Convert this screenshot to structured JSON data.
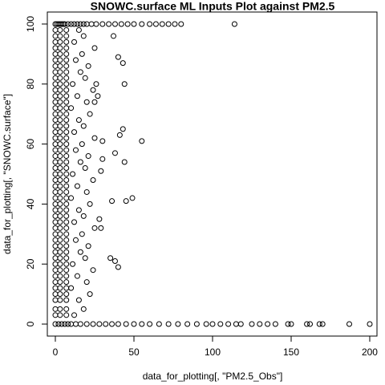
{
  "chart_data": {
    "type": "scatter",
    "title": "SNOWC.surface ML Inputs Plot against PM2.5",
    "xlabel": "data_for_plotting[, \"PM2.5_Obs\"]",
    "ylabel": "data_for_plotting[, \"SNOWC.surface\"]",
    "color": "#000000",
    "xlim": [
      -5.1,
      204.6
    ],
    "ylim": [
      -4,
      104
    ],
    "xticks": [
      0,
      50,
      100,
      150,
      200
    ],
    "yticks": [
      0,
      20,
      40,
      60,
      80,
      100
    ],
    "x": [
      0,
      1,
      2,
      3,
      4,
      5,
      6,
      8,
      10,
      12,
      14,
      16,
      18,
      20,
      23,
      26,
      30,
      34,
      38,
      42,
      46,
      50,
      55,
      60,
      64,
      68,
      72,
      76,
      80,
      114,
      0,
      2,
      4,
      6,
      8,
      10,
      13,
      16,
      20,
      24,
      28,
      32,
      36,
      40,
      45,
      50,
      55,
      60,
      66,
      72,
      78,
      84,
      90,
      96,
      100,
      105,
      110,
      115,
      118,
      125,
      130,
      135,
      140,
      148,
      150,
      160,
      162,
      168,
      170,
      187,
      200,
      37,
      40,
      43,
      44,
      36,
      45,
      49,
      55,
      44,
      41,
      43,
      38,
      35,
      38,
      40,
      29,
      28,
      29,
      30,
      30,
      26,
      27,
      25,
      0,
      3,
      7,
      12,
      0,
      3,
      7,
      18,
      0,
      3,
      7,
      15,
      0,
      3,
      7,
      22,
      0,
      3,
      7,
      10,
      0,
      3,
      7,
      20,
      0,
      3,
      7,
      14,
      0,
      3,
      7,
      24,
      0,
      3,
      7,
      11,
      0,
      3,
      7,
      19,
      0,
      3,
      7,
      16,
      0,
      3,
      7,
      21,
      0,
      3,
      7,
      13,
      0,
      3,
      7,
      17,
      0,
      3,
      7,
      25,
      0,
      3,
      7,
      12,
      0,
      3,
      7,
      18,
      0,
      3,
      7,
      15,
      0,
      3,
      7,
      22,
      0,
      3,
      7,
      10,
      0,
      3,
      7,
      20,
      0,
      3,
      7,
      14,
      0,
      3,
      7,
      24,
      0,
      3,
      7,
      11,
      0,
      3,
      7,
      19,
      0,
      3,
      7,
      16,
      0,
      3,
      7,
      21,
      0,
      3,
      7,
      13,
      0,
      3,
      7,
      17,
      0,
      3,
      7,
      25,
      0,
      3,
      7,
      12,
      0,
      3,
      7,
      18,
      0,
      3,
      7,
      15,
      0,
      3,
      7,
      22,
      0,
      3,
      7,
      10,
      0,
      3,
      7,
      20,
      0,
      3,
      7,
      14,
      0,
      3,
      7,
      24,
      0,
      3,
      7,
      11,
      0,
      3,
      7,
      19,
      0,
      3,
      7,
      16,
      0,
      3,
      7,
      21,
      0,
      3,
      7,
      13,
      0,
      3,
      7,
      17,
      0,
      3,
      7,
      25,
      0,
      3,
      7,
      12,
      0,
      3,
      7,
      18,
      0,
      3,
      7,
      15
    ],
    "values": [
      100,
      100,
      100,
      100,
      100,
      100,
      100,
      100,
      100,
      100,
      100,
      100,
      100,
      100,
      100,
      100,
      100,
      100,
      100,
      100,
      100,
      100,
      100,
      100,
      100,
      100,
      100,
      100,
      100,
      100,
      0,
      0,
      0,
      0,
      0,
      0,
      0,
      0,
      0,
      0,
      0,
      0,
      0,
      0,
      0,
      0,
      0,
      0,
      0,
      0,
      0,
      0,
      0,
      0,
      0,
      0,
      0,
      0,
      0,
      0,
      0,
      0,
      0,
      0,
      0,
      0,
      0,
      0,
      0,
      0,
      0,
      96,
      89,
      87,
      80,
      41,
      41,
      42,
      61,
      54,
      63,
      65,
      57,
      22,
      21,
      19,
      32,
      35,
      51,
      55,
      61,
      80,
      76,
      74,
      3,
      3,
      3,
      3,
      5,
      5,
      5,
      5,
      8,
      8,
      8,
      8,
      10,
      10,
      10,
      10,
      12,
      12,
      12,
      12,
      14,
      14,
      14,
      14,
      16,
      16,
      16,
      16,
      18,
      18,
      18,
      18,
      20,
      20,
      20,
      20,
      22,
      22,
      22,
      22,
      24,
      24,
      24,
      24,
      26,
      26,
      26,
      26,
      28,
      28,
      28,
      28,
      30,
      30,
      30,
      30,
      32,
      32,
      32,
      32,
      34,
      34,
      34,
      34,
      36,
      36,
      36,
      36,
      38,
      38,
      38,
      38,
      40,
      40,
      40,
      40,
      42,
      42,
      42,
      42,
      44,
      44,
      44,
      44,
      46,
      46,
      46,
      46,
      48,
      48,
      48,
      48,
      50,
      50,
      50,
      50,
      52,
      52,
      52,
      52,
      54,
      54,
      54,
      54,
      56,
      56,
      56,
      56,
      58,
      58,
      58,
      58,
      60,
      60,
      60,
      60,
      62,
      62,
      62,
      62,
      64,
      64,
      64,
      64,
      66,
      66,
      66,
      66,
      68,
      68,
      68,
      68,
      70,
      70,
      70,
      70,
      72,
      72,
      72,
      72,
      74,
      74,
      74,
      74,
      76,
      76,
      76,
      76,
      78,
      78,
      78,
      78,
      80,
      80,
      80,
      80,
      82,
      82,
      82,
      82,
      84,
      84,
      84,
      84,
      86,
      86,
      86,
      86,
      88,
      88,
      88,
      88,
      90,
      90,
      90,
      90,
      92,
      92,
      92,
      92,
      94,
      94,
      94,
      94,
      96,
      96,
      96,
      96,
      98,
      98,
      98,
      98
    ]
  }
}
